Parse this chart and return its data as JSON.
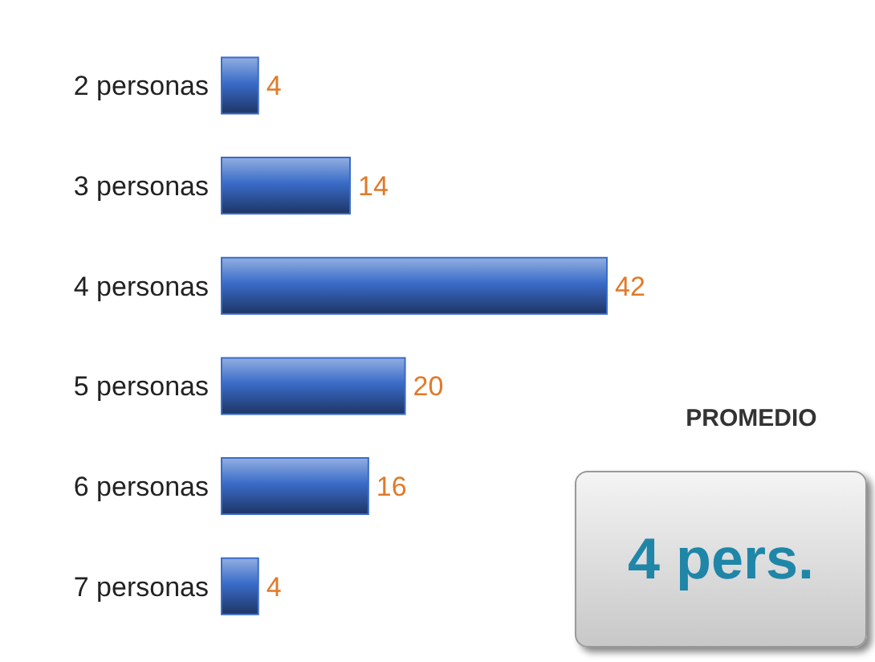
{
  "chart_data": {
    "type": "bar",
    "orientation": "horizontal",
    "categories": [
      "2 personas",
      "3 personas",
      "4 personas",
      "5 personas",
      "6 personas",
      "7 personas"
    ],
    "values": [
      4,
      14,
      42,
      20,
      16,
      4
    ],
    "color": "#3a6cc8",
    "data_labels": true,
    "tick_labels": "y",
    "annotations": [
      "PROMEDIO",
      "4 pers."
    ]
  }
}
